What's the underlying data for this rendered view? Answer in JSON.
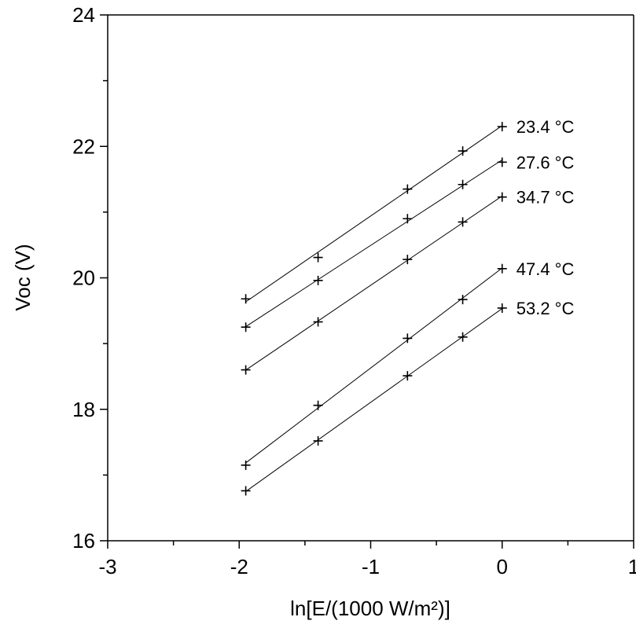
{
  "chart_data": {
    "type": "scatter",
    "xlabel": "ln[E/(1000 W/m²)]",
    "ylabel": "Voc (V)",
    "xlim": [
      -3,
      1
    ],
    "ylim": [
      16,
      24
    ],
    "xticks": [
      -3,
      -2,
      -1,
      0,
      1
    ],
    "yticks": [
      16,
      18,
      20,
      22,
      24
    ],
    "xtick_labels": [
      "-3",
      "-2",
      "-1",
      "0",
      "1"
    ],
    "ytick_labels": [
      "16",
      "18",
      "20",
      "22",
      "24"
    ],
    "grid": false,
    "marker": "plus",
    "fit_lines": true,
    "x": [
      -1.95,
      -1.4,
      -0.72,
      -0.3,
      0
    ],
    "series": [
      {
        "name": "23.4 °C",
        "values": [
          19.68,
          20.31,
          21.35,
          21.93,
          22.3
        ]
      },
      {
        "name": "27.6 °C",
        "values": [
          19.25,
          19.96,
          20.9,
          21.42,
          21.76
        ]
      },
      {
        "name": "34.7 °C",
        "values": [
          18.6,
          19.33,
          20.28,
          20.85,
          21.23
        ]
      },
      {
        "name": "47.4 °C",
        "values": [
          17.15,
          18.06,
          19.08,
          19.67,
          20.14
        ]
      },
      {
        "name": "53.2 °C",
        "values": [
          16.76,
          17.52,
          18.51,
          19.1,
          19.54
        ]
      }
    ]
  }
}
